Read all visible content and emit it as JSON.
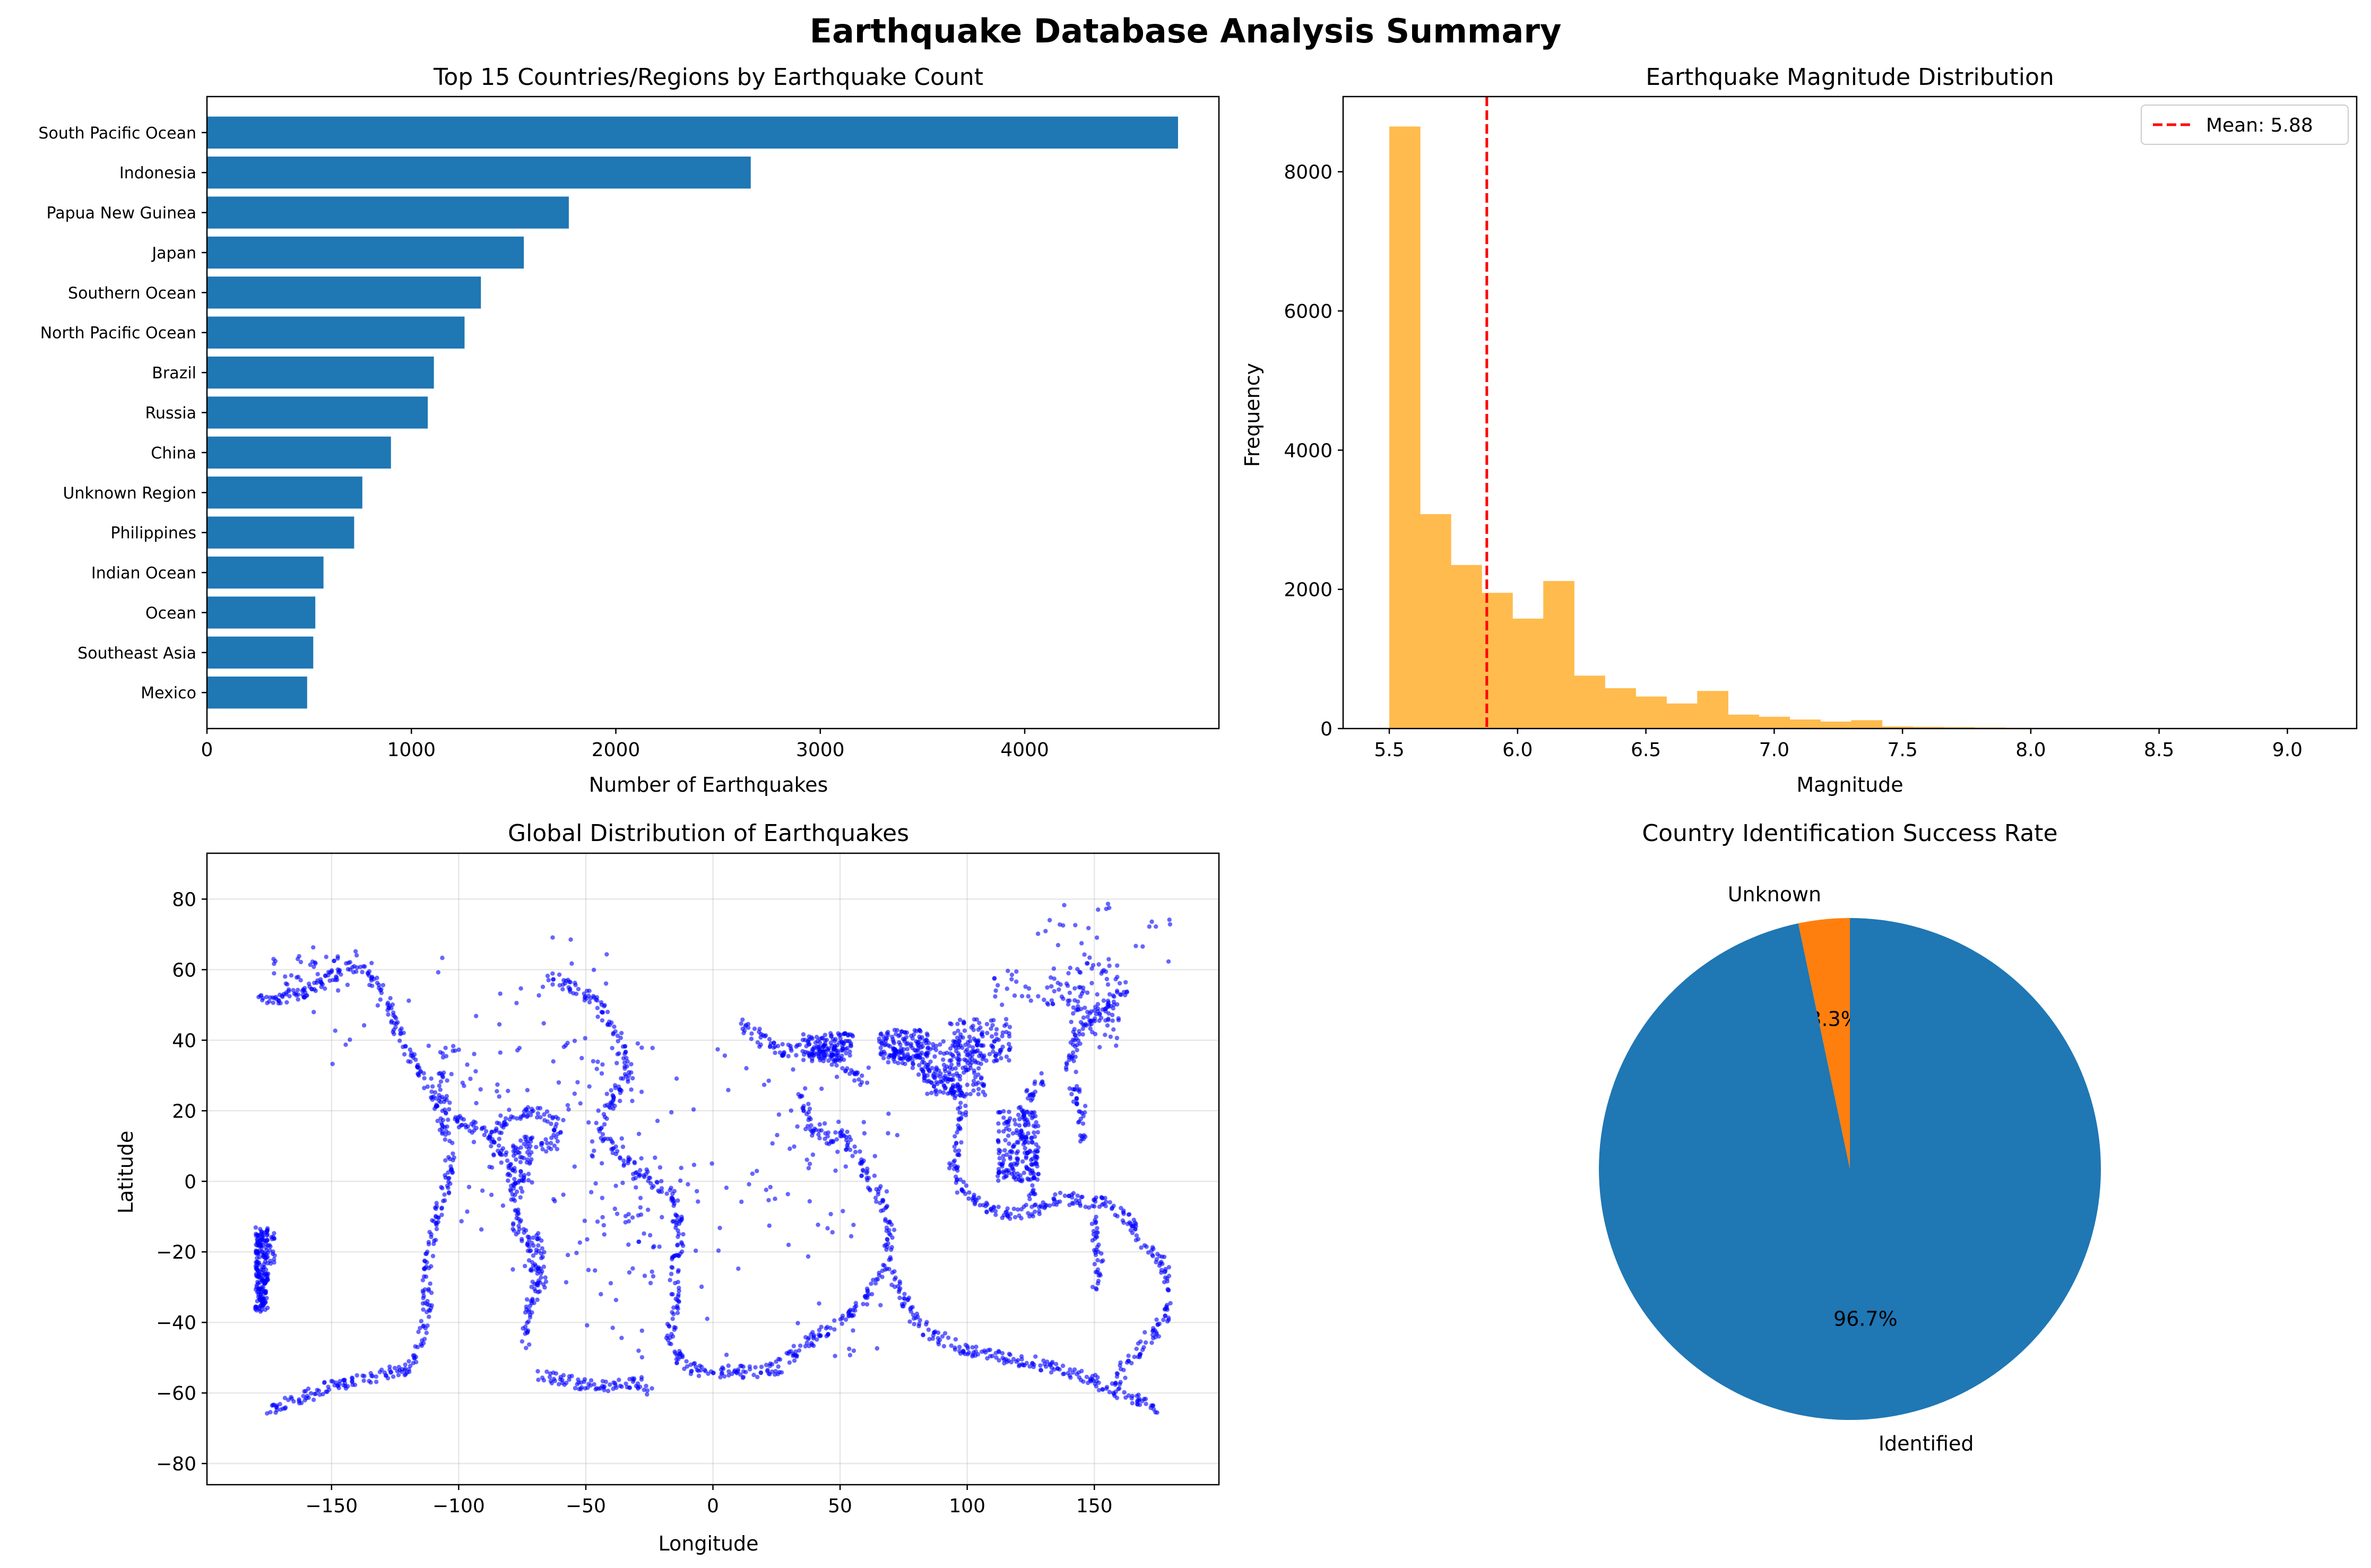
{
  "figure": {
    "suptitle": "Earthquake Database Analysis Summary"
  },
  "chart_data": [
    {
      "type": "bar",
      "orientation": "horizontal",
      "title": "Top 15 Countries/Regions by Earthquake Count",
      "xlabel": "Number of Earthquakes",
      "ylabel": "",
      "categories": [
        "South Pacific Ocean",
        "Indonesia",
        "Papua New Guinea",
        "Japan",
        "Southern Ocean",
        "North Pacific Ocean",
        "Brazil",
        "Russia",
        "China",
        "Unknown Region",
        "Philippines",
        "Indian Ocean",
        "Ocean",
        "Southeast Asia",
        "Mexico"
      ],
      "values": [
        4750,
        2660,
        1770,
        1550,
        1340,
        1260,
        1110,
        1080,
        900,
        760,
        720,
        570,
        530,
        520,
        490
      ],
      "xlim": [
        0,
        4950
      ],
      "xticks": [
        0,
        1000,
        2000,
        3000,
        4000
      ],
      "color": "#1f77b4",
      "grid": false
    },
    {
      "type": "histogram",
      "title": "Earthquake Magnitude Distribution",
      "xlabel": "Magnitude",
      "ylabel": "Frequency",
      "bin_start": 5.5,
      "bin_width": 0.12,
      "counts": [
        8650,
        3080,
        2350,
        1950,
        1580,
        2120,
        760,
        580,
        460,
        360,
        540,
        200,
        170,
        130,
        100,
        120,
        30,
        25,
        20,
        15,
        10,
        8,
        5,
        3,
        2,
        1,
        1,
        1,
        1,
        1
      ],
      "xlim": [
        5.32,
        9.27
      ],
      "ylim": [
        0,
        9080
      ],
      "xticks": [
        5.5,
        6.0,
        6.5,
        7.0,
        7.5,
        8.0,
        8.5,
        9.0
      ],
      "yticks": [
        0,
        2000,
        4000,
        6000,
        8000
      ],
      "mean": 5.88,
      "mean_label": "Mean: 5.88",
      "bar_color": "#ffbb4d",
      "mean_line_color": "#ff0000",
      "legend_position": "top-right",
      "grid": false
    },
    {
      "type": "scatter",
      "title": "Global Distribution of Earthquakes",
      "xlabel": "Longitude",
      "ylabel": "Latitude",
      "xlim": [
        -199,
        199
      ],
      "ylim": [
        -86,
        93
      ],
      "xticks": [
        -150,
        -100,
        -50,
        0,
        50,
        100,
        150
      ],
      "yticks": [
        -80,
        -60,
        -40,
        -20,
        0,
        20,
        40,
        60,
        80
      ],
      "point_color": "#0000ff",
      "grid": true,
      "polylines": [
        [
          [
            -180,
            51
          ],
          [
            -170,
            52
          ],
          [
            -160,
            54
          ],
          [
            -152,
            57
          ],
          [
            -145,
            60
          ],
          [
            -140,
            61
          ],
          [
            -135,
            58
          ],
          [
            -130,
            54
          ],
          [
            -127,
            49
          ],
          [
            -125,
            44
          ],
          [
            -122,
            41
          ],
          [
            -117,
            33
          ],
          [
            -112,
            27
          ],
          [
            -108,
            22
          ],
          [
            -104,
            19
          ],
          [
            -98,
            16
          ],
          [
            -92,
            14
          ],
          [
            -88,
            13
          ],
          [
            -85,
            10
          ],
          [
            -82,
            7
          ],
          [
            -79,
            2
          ],
          [
            -79,
            -2
          ],
          [
            -78,
            -6
          ],
          [
            -77,
            -12
          ],
          [
            -73,
            -17
          ],
          [
            -71,
            -22
          ],
          [
            -70,
            -28
          ],
          [
            -72,
            -35
          ],
          [
            -73,
            -40
          ],
          [
            -74,
            -46
          ]
        ],
        [
          [
            -86,
            12
          ],
          [
            -80,
            19
          ],
          [
            -72,
            20
          ],
          [
            -64,
            18
          ],
          [
            -61,
            15
          ],
          [
            -62,
            11
          ],
          [
            -67,
            10
          ],
          [
            -72,
            11
          ]
        ],
        [
          [
            -70,
            -15
          ],
          [
            -68,
            -20
          ],
          [
            -67,
            -25
          ],
          [
            -68,
            -30
          ],
          [
            -69,
            -33
          ]
        ],
        [
          [
            -108,
            18
          ],
          [
            -103,
            10
          ],
          [
            -104,
            0
          ],
          [
            -107,
            -5
          ],
          [
            -110,
            -15
          ],
          [
            -113,
            -25
          ],
          [
            -112,
            -35
          ],
          [
            -115,
            -45
          ],
          [
            -120,
            -53
          ],
          [
            -135,
            -56
          ],
          [
            -150,
            -58
          ],
          [
            -165,
            -62
          ],
          [
            -175,
            -65
          ]
        ],
        [
          [
            -65,
            58
          ],
          [
            -55,
            55
          ],
          [
            -45,
            50
          ],
          [
            -37,
            40
          ],
          [
            -32,
            30
          ],
          [
            -40,
            23
          ],
          [
            -45,
            15
          ],
          [
            -38,
            8
          ],
          [
            -27,
            1
          ],
          [
            -16,
            -4
          ],
          [
            -13,
            -15
          ],
          [
            -15,
            -25
          ],
          [
            -15,
            -35
          ],
          [
            -17,
            -45
          ],
          [
            -10,
            -53
          ],
          [
            0,
            -54
          ],
          [
            15,
            -54
          ],
          [
            25,
            -53
          ],
          [
            35,
            -47
          ],
          [
            50,
            -40
          ],
          [
            60,
            -33
          ],
          [
            68,
            -25
          ],
          [
            70,
            -15
          ],
          [
            66,
            -5
          ],
          [
            58,
            5
          ],
          [
            52,
            13
          ],
          [
            44,
            12
          ],
          [
            38,
            15
          ],
          [
            35,
            25
          ]
        ],
        [
          [
            -68,
            -55
          ],
          [
            -55,
            -57
          ],
          [
            -40,
            -58
          ],
          [
            -28,
            -57
          ],
          [
            -25,
            -60
          ]
        ],
        [
          [
            70,
            -25
          ],
          [
            78,
            -38
          ],
          [
            85,
            -43
          ],
          [
            100,
            -48
          ],
          [
            115,
            -50
          ],
          [
            130,
            -52
          ],
          [
            145,
            -55
          ],
          [
            160,
            -60
          ],
          [
            175,
            -65
          ]
        ],
        [
          [
            65,
            38
          ],
          [
            75,
            36
          ],
          [
            85,
            30
          ],
          [
            95,
            27
          ],
          [
            98,
            20
          ],
          [
            96,
            10
          ],
          [
            94,
            3
          ],
          [
            98,
            -2
          ],
          [
            103,
            -5
          ],
          [
            110,
            -9
          ],
          [
            120,
            -9
          ],
          [
            128,
            -8
          ],
          [
            135,
            -5
          ],
          [
            142,
            -5
          ],
          [
            148,
            -6
          ],
          [
            154,
            -6
          ],
          [
            158,
            -8
          ],
          [
            165,
            -12
          ],
          [
            168,
            -17
          ],
          [
            172,
            -20
          ],
          [
            176,
            -22
          ],
          [
            178,
            -26
          ],
          [
            180,
            -32
          ],
          [
            178,
            -38
          ],
          [
            175,
            -42
          ],
          [
            168,
            -47
          ],
          [
            162,
            -52
          ],
          [
            158,
            -58
          ]
        ],
        [
          [
            122,
            23
          ],
          [
            122,
            14
          ],
          [
            126,
            8
          ],
          [
            126,
            2
          ],
          [
            127,
            -1
          ],
          [
            125,
            -5
          ]
        ],
        [
          [
            141,
            35
          ],
          [
            142,
            40
          ],
          [
            145,
            43
          ],
          [
            150,
            46
          ],
          [
            155,
            50
          ],
          [
            160,
            53
          ],
          [
            163,
            56
          ]
        ],
        [
          [
            140,
            35
          ],
          [
            142,
            27
          ],
          [
            145,
            20
          ],
          [
            146,
            12
          ]
        ],
        [
          [
            130,
            31
          ],
          [
            126,
            25
          ],
          [
            123,
            24
          ]
        ],
        [
          [
            10,
            45
          ],
          [
            20,
            40
          ],
          [
            28,
            37
          ],
          [
            35,
            37
          ],
          [
            45,
            36
          ],
          [
            55,
            30
          ],
          [
            60,
            28
          ]
        ],
        [
          [
            150,
            -30
          ],
          [
            152,
            -22
          ],
          [
            150,
            -10
          ]
        ],
        [
          [
            -172,
            -15
          ],
          [
            -173,
            -20
          ],
          [
            -175,
            -25
          ],
          [
            -177,
            -30
          ],
          [
            -178,
            -36
          ]
        ]
      ],
      "clusters": [
        [
          -178,
          -25,
          3,
          12,
          220
        ],
        [
          -105,
          30,
          4,
          8,
          25
        ],
        [
          -75,
          5,
          4,
          8,
          50
        ],
        [
          45,
          38,
          10,
          4,
          120
        ],
        [
          75,
          38,
          10,
          5,
          120
        ],
        [
          95,
          32,
          12,
          8,
          160
        ],
        [
          105,
          40,
          12,
          6,
          100
        ],
        [
          120,
          10,
          8,
          10,
          160
        ],
        [
          150,
          50,
          10,
          12,
          80
        ],
        [
          125,
          55,
          15,
          5,
          40
        ],
        [
          -60,
          5,
          40,
          35,
          120
        ],
        [
          10,
          -10,
          60,
          40,
          70
        ],
        [
          -100,
          50,
          60,
          20,
          40
        ],
        [
          155,
          70,
          30,
          10,
          30
        ],
        [
          -160,
          58,
          15,
          6,
          40
        ],
        [
          20,
          10,
          60,
          30,
          60
        ]
      ]
    },
    {
      "type": "pie",
      "title": "Country Identification Success Rate",
      "labels": [
        "Unknown",
        "Identified"
      ],
      "values": [
        3.3,
        96.7
      ],
      "autopct": [
        "3.3%",
        "96.7%"
      ],
      "colors": [
        "#ff7f0e",
        "#1f77b4"
      ],
      "start_angle": 90
    }
  ]
}
